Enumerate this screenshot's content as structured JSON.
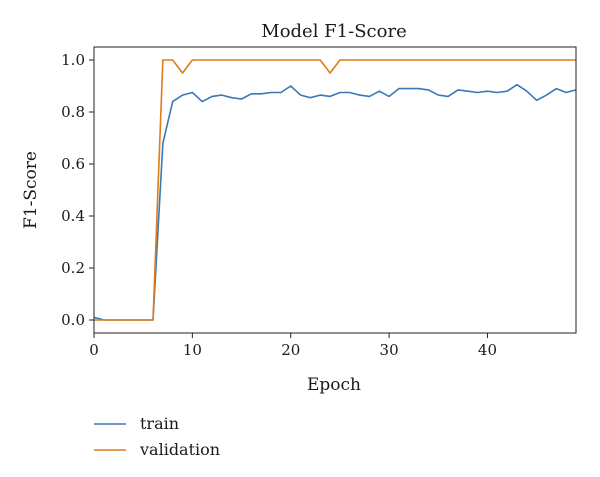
{
  "chart_data": {
    "type": "line",
    "title": "Model F1-Score",
    "xlabel": "Epoch",
    "ylabel": "F1-Score",
    "xlim": [
      0,
      49
    ],
    "ylim": [
      -0.05,
      1.05
    ],
    "xticks": [
      0,
      10,
      20,
      30,
      40
    ],
    "yticks": [
      0.0,
      0.2,
      0.4,
      0.6,
      0.8,
      1.0
    ],
    "xtick_labels": [
      "0",
      "10",
      "20",
      "30",
      "40"
    ],
    "ytick_labels": [
      "0.0",
      "0.2",
      "0.4",
      "0.6",
      "0.8",
      "1.0"
    ],
    "grid": false,
    "legend_position": "below",
    "x": [
      0,
      1,
      2,
      3,
      4,
      5,
      6,
      7,
      8,
      9,
      10,
      11,
      12,
      13,
      14,
      15,
      16,
      17,
      18,
      19,
      20,
      21,
      22,
      23,
      24,
      25,
      26,
      27,
      28,
      29,
      30,
      31,
      32,
      33,
      34,
      35,
      36,
      37,
      38,
      39,
      40,
      41,
      42,
      43,
      44,
      45,
      46,
      47,
      48,
      49
    ],
    "series": [
      {
        "name": "train",
        "color": "#3b78b5",
        "values": [
          0.01,
          0.0,
          0.0,
          0.0,
          0.0,
          0.0,
          0.0,
          0.68,
          0.84,
          0.865,
          0.875,
          0.84,
          0.86,
          0.865,
          0.855,
          0.85,
          0.87,
          0.87,
          0.875,
          0.875,
          0.9,
          0.865,
          0.855,
          0.865,
          0.86,
          0.875,
          0.875,
          0.865,
          0.86,
          0.88,
          0.86,
          0.89,
          0.89,
          0.89,
          0.885,
          0.865,
          0.86,
          0.885,
          0.88,
          0.875,
          0.88,
          0.875,
          0.88,
          0.905,
          0.88,
          0.845,
          0.865,
          0.89,
          0.875,
          0.885
        ]
      },
      {
        "name": "validation",
        "color": "#e07b1a",
        "values": [
          0.0,
          0.0,
          0.0,
          0.0,
          0.0,
          0.0,
          0.0,
          1.0,
          1.0,
          0.95,
          1.0,
          1.0,
          1.0,
          1.0,
          1.0,
          1.0,
          1.0,
          1.0,
          1.0,
          1.0,
          1.0,
          1.0,
          1.0,
          1.0,
          0.95,
          1.0,
          1.0,
          1.0,
          1.0,
          1.0,
          1.0,
          1.0,
          1.0,
          1.0,
          1.0,
          1.0,
          1.0,
          1.0,
          1.0,
          1.0,
          1.0,
          1.0,
          1.0,
          1.0,
          1.0,
          1.0,
          1.0,
          1.0,
          1.0,
          1.0
        ]
      }
    ]
  }
}
